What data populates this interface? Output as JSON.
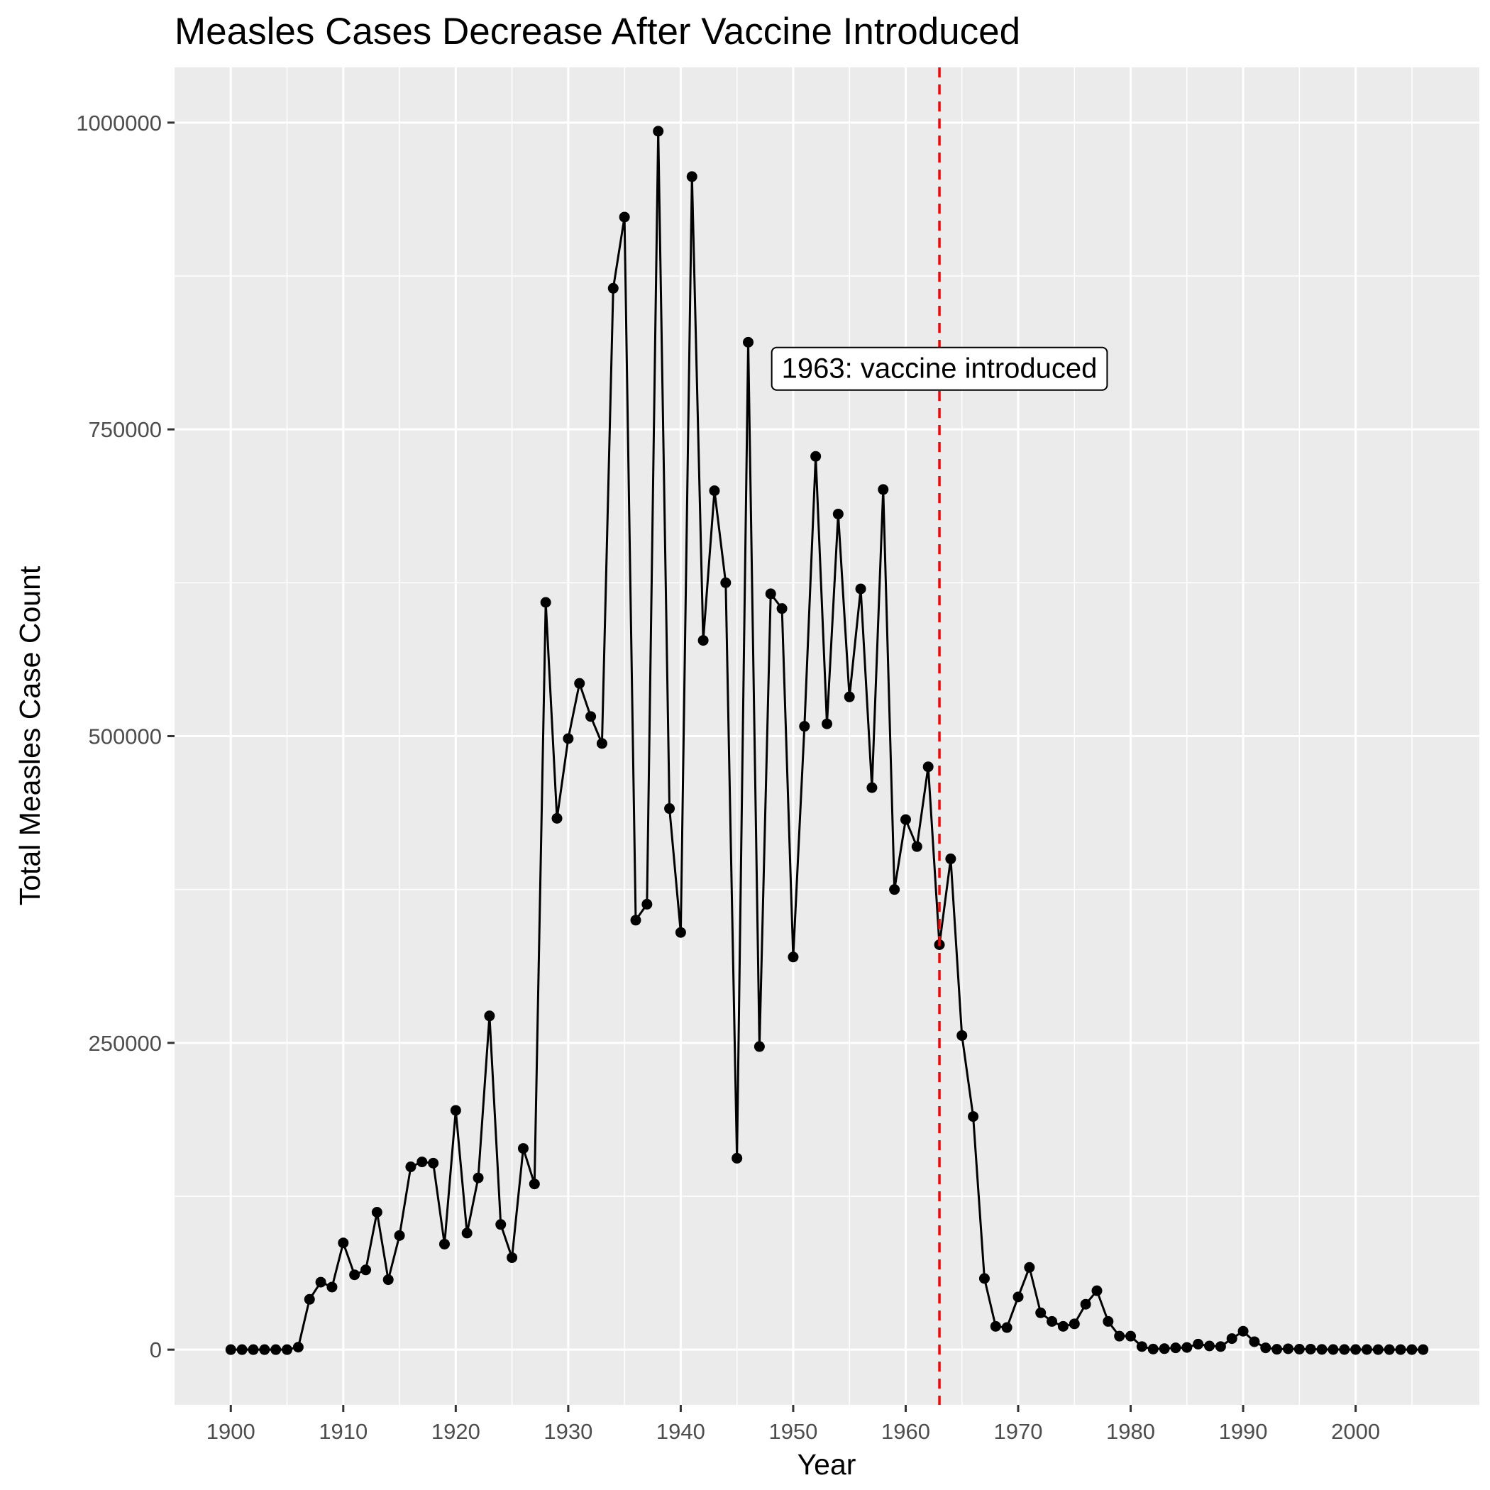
{
  "chart_data": {
    "type": "line",
    "title": "Measles Cases Decrease After Vaccine Introduced",
    "xlabel": "Year",
    "ylabel": "Total Measles Case Count",
    "xlim": [
      1895,
      2011
    ],
    "ylim": [
      -45000,
      1045000
    ],
    "x_ticks": [
      1900,
      1910,
      1920,
      1930,
      1940,
      1950,
      1960,
      1970,
      1980,
      1990,
      2000
    ],
    "x_minor_ticks": [
      1905,
      1915,
      1925,
      1935,
      1945,
      1955,
      1965,
      1975,
      1985,
      1995,
      2005
    ],
    "y_ticks": [
      0,
      250000,
      500000,
      750000,
      1000000
    ],
    "y_minor_ticks": [
      125000,
      375000,
      625000,
      875000
    ],
    "grid": true,
    "legend": "none",
    "colors": {
      "panel_background": "#ebebeb",
      "gridline": "#ffffff",
      "series": "#000000",
      "vline": "#ff0000"
    },
    "vline": {
      "x": 1963,
      "style": "dashed"
    },
    "annotation": {
      "text": "1963: vaccine introduced",
      "x": 1963,
      "y": 800000
    },
    "series": [
      {
        "x": [
          1900,
          1901,
          1902,
          1903,
          1904,
          1905,
          1906,
          1907,
          1908,
          1909,
          1910,
          1911,
          1912,
          1913,
          1914,
          1915,
          1916,
          1917,
          1918,
          1919,
          1920,
          1921,
          1922,
          1923,
          1924,
          1925,
          1926,
          1927,
          1928,
          1929,
          1930,
          1931,
          1932,
          1933,
          1934,
          1935,
          1936,
          1937,
          1938,
          1939,
          1940,
          1941,
          1942,
          1943,
          1944,
          1945,
          1946,
          1947,
          1948,
          1949,
          1950,
          1951,
          1952,
          1953,
          1954,
          1955,
          1956,
          1957,
          1958,
          1959,
          1960,
          1961,
          1962,
          1963,
          1964,
          1965,
          1966,
          1967,
          1968,
          1969,
          1970,
          1971,
          1972,
          1973,
          1974,
          1975,
          1976,
          1977,
          1978,
          1979,
          1980,
          1981,
          1982,
          1983,
          1984,
          1985,
          1986,
          1987,
          1988,
          1989,
          1990,
          1991,
          1992,
          1993,
          1994,
          1995,
          1996,
          1997,
          1998,
          1999,
          2000,
          2001,
          2002,
          2003,
          2004,
          2005,
          2006
        ],
        "y": [
          0,
          0,
          0,
          0,
          0,
          0,
          2000,
          41000,
          55000,
          51000,
          87000,
          61000,
          65000,
          112000,
          57000,
          93000,
          149000,
          153000,
          152000,
          86000,
          195000,
          95000,
          140000,
          272000,
          102000,
          75000,
          164000,
          135000,
          609000,
          433000,
          498000,
          543000,
          516000,
          494000,
          865000,
          923000,
          350000,
          363000,
          993000,
          441000,
          340000,
          956000,
          578000,
          700000,
          625000,
          156000,
          821000,
          247000,
          616000,
          604000,
          320000,
          508000,
          728000,
          510000,
          681000,
          532000,
          620000,
          458000,
          701000,
          375000,
          432000,
          410000,
          475000,
          330000,
          400000,
          256000,
          190000,
          58000,
          19000,
          18000,
          43000,
          67000,
          30000,
          23000,
          19000,
          21000,
          37000,
          48000,
          23000,
          11000,
          11000,
          2500,
          500,
          800,
          1500,
          1800,
          4500,
          3000,
          2500,
          9000,
          15000,
          6500,
          1500,
          300,
          700,
          400,
          400,
          200,
          100,
          100,
          100,
          100,
          40,
          50,
          40,
          60,
          50
        ]
      }
    ]
  }
}
